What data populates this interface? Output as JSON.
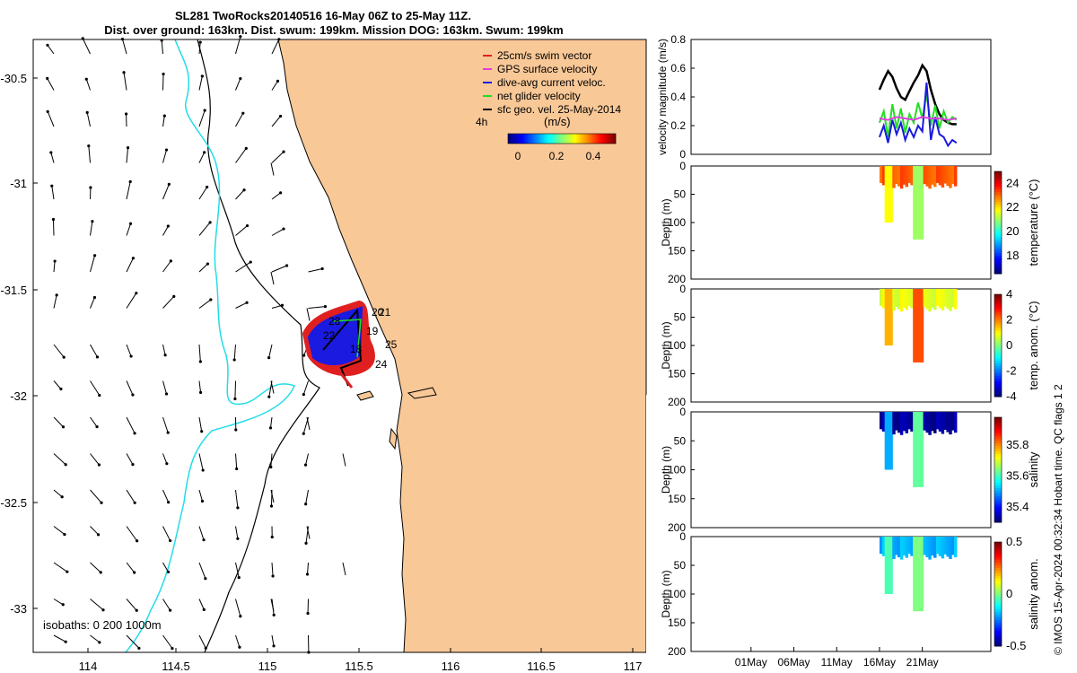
{
  "header": {
    "title": "SL281 TwoRocks20140516 16-May 06Z to 25-May 11Z.",
    "subtitle": "Dist. over ground: 163km. Dist. swum: 199km. Mission DOG: 163km. Swum: 199km"
  },
  "credit": "© IMOS 15-Apr-2024 00:32:34 Hobart time. QC flags 1  2",
  "colors": {
    "land": "#f9c897",
    "isobath_200": "#000000",
    "isobath_1000": "#22dde8",
    "swim_vector": "#e02020",
    "gps_velocity": "#e040e0",
    "dive_avg": "#1a1ae0",
    "net_velocity": "#20e020",
    "sfc_geo": "#000000"
  },
  "map": {
    "x_ticks": [
      "114",
      "114.5",
      "115",
      "115.5",
      "116",
      "116.5",
      "117"
    ],
    "y_ticks": [
      "-30.5",
      "-31",
      "-31.5",
      "-32",
      "-32.5",
      "-33"
    ],
    "isobaths_label": "isobaths: 0   200  1000m",
    "legend": [
      {
        "label": "25cm/s swim vector",
        "color": "#e02020"
      },
      {
        "label": "GPS surface velocity",
        "color": "#e040e0"
      },
      {
        "label": "dive-avg current veloc.",
        "color": "#1a1ae0"
      },
      {
        "label": "net glider velocity",
        "color": "#20e020"
      },
      {
        "label": "sfc geo. vel. 25-May-2014",
        "color": "#000000"
      }
    ],
    "legend_extra": "4h",
    "colorbar_title": "(m/s)",
    "colorbar_ticks": [
      "0",
      "0.2",
      "0.4"
    ],
    "day_labels": [
      "20",
      "21",
      "22",
      "28",
      "19",
      "18",
      "25",
      "24"
    ]
  },
  "chart_data": [
    {
      "type": "line",
      "ylabel": "velocity magnitude (m/s)",
      "ylim": [
        0,
        0.8
      ],
      "y_ticks": [
        "0",
        "0.2",
        "0.4",
        "0.6",
        "0.8"
      ],
      "series": [
        {
          "color": "#000000",
          "x": [
            16.0,
            16.5,
            17.0,
            17.5,
            18.0,
            18.5,
            19.0,
            19.5,
            20.0,
            20.5,
            21.0,
            21.5,
            22.0,
            22.5,
            23.0,
            23.5,
            24.0,
            24.5,
            25.0
          ],
          "y": [
            0.45,
            0.52,
            0.58,
            0.54,
            0.46,
            0.4,
            0.38,
            0.44,
            0.5,
            0.55,
            0.62,
            0.58,
            0.45,
            0.35,
            0.28,
            0.24,
            0.22,
            0.21,
            0.21
          ]
        },
        {
          "color": "#20e020",
          "x": [
            16.0,
            16.5,
            17.0,
            17.5,
            18.0,
            18.5,
            19.0,
            19.5,
            20.0,
            20.5,
            21.0,
            21.5,
            22.0,
            22.5,
            23.0,
            23.5,
            24.0,
            24.5,
            25.0
          ],
          "y": [
            0.22,
            0.3,
            0.12,
            0.35,
            0.18,
            0.32,
            0.15,
            0.28,
            0.22,
            0.36,
            0.25,
            0.42,
            0.2,
            0.34,
            0.18,
            0.3,
            0.22,
            0.26,
            0.24
          ]
        },
        {
          "color": "#1a1ae0",
          "x": [
            16.0,
            16.5,
            17.0,
            17.5,
            18.0,
            18.5,
            19.0,
            19.5,
            20.0,
            20.5,
            21.0,
            21.5,
            22.0,
            22.5,
            23.0,
            23.5,
            24.0,
            24.5,
            25.0
          ],
          "y": [
            0.12,
            0.2,
            0.08,
            0.24,
            0.14,
            0.22,
            0.1,
            0.18,
            0.12,
            0.2,
            0.16,
            0.5,
            0.1,
            0.26,
            0.14,
            0.12,
            0.06,
            0.1,
            0.08
          ]
        },
        {
          "color": "#e040e0",
          "x": [
            16.0,
            17.0,
            18.0,
            19.0,
            20.0,
            21.0,
            22.0,
            23.0,
            24.0,
            25.0
          ],
          "y": [
            0.25,
            0.24,
            0.26,
            0.25,
            0.24,
            0.26,
            0.25,
            0.25,
            0.24,
            0.25
          ]
        }
      ]
    },
    {
      "type": "heatmap",
      "ylabel": "Depth (m)",
      "cbar_label": "temperature (°C)",
      "ylim": [
        200,
        0
      ],
      "y_ticks": [
        "0",
        "50",
        "100",
        "150",
        "200"
      ],
      "cbar_ticks": [
        "24",
        "22",
        "20",
        "18"
      ],
      "clim": [
        16.5,
        25
      ],
      "base_value": 23.2,
      "dive1_value": 21.8,
      "dive2_value": 21.0
    },
    {
      "type": "heatmap",
      "ylabel": "Depth (m)",
      "cbar_label": "temp. anom. (°C)",
      "ylim": [
        200,
        0
      ],
      "y_ticks": [
        "0",
        "50",
        "100",
        "150",
        "200"
      ],
      "cbar_ticks": [
        "4",
        "2",
        "0",
        "-2",
        "-4"
      ],
      "clim": [
        -4,
        4
      ],
      "base_value": 0.8,
      "dive1_value": 1.6,
      "dive2_value": 2.4
    },
    {
      "type": "heatmap",
      "ylabel": "Depth (m)",
      "cbar_label": "salinity",
      "ylim": [
        200,
        0
      ],
      "y_ticks": [
        "0",
        "50",
        "100",
        "150",
        "200"
      ],
      "cbar_ticks": [
        "35.8",
        "35.6",
        "35.4"
      ],
      "clim": [
        35.3,
        35.98
      ],
      "base_value": 35.32,
      "dive1_value": 35.5,
      "dive2_value": 35.62
    },
    {
      "type": "heatmap",
      "ylabel": "Depth (m)",
      "cbar_label": "salinity anom.",
      "ylim": [
        200,
        0
      ],
      "y_ticks": [
        "0",
        "50",
        "100",
        "150",
        "200"
      ],
      "cbar_ticks": [
        "0.5",
        "0",
        "-0.5"
      ],
      "clim": [
        -0.5,
        0.5
      ],
      "base_value": -0.2,
      "dive1_value": -0.05,
      "dive2_value": 0.0
    }
  ],
  "time_axis": {
    "tick_labels": [
      "01May",
      "06May",
      "11May",
      "16May",
      "21May"
    ]
  }
}
